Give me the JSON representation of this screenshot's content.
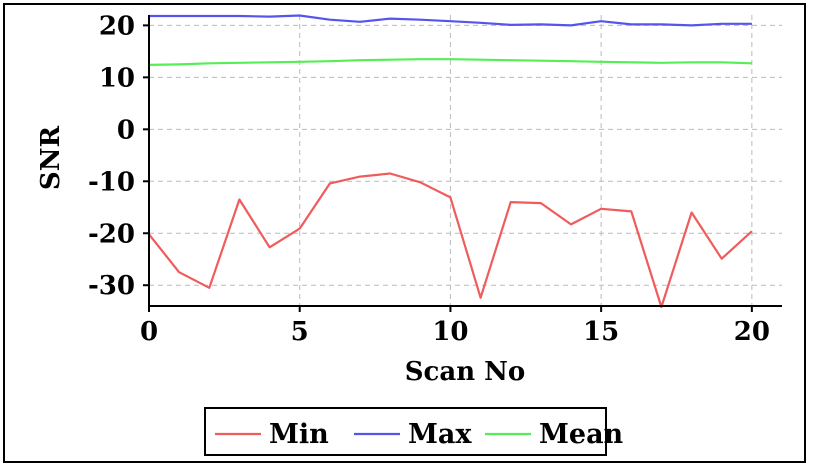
{
  "chart_data": {
    "type": "line",
    "xlabel": "Scan No",
    "ylabel": "SNR",
    "xlim": [
      0,
      21
    ],
    "ylim": [
      -34,
      22
    ],
    "xticks": [
      0,
      5,
      10,
      15,
      20
    ],
    "yticks": [
      20,
      10,
      0,
      -10,
      -20,
      -30
    ],
    "grid": true,
    "legend_position": "bottom-center",
    "x": [
      0,
      1,
      2,
      3,
      4,
      5,
      6,
      7,
      8,
      9,
      10,
      11,
      12,
      13,
      14,
      15,
      16,
      17,
      18,
      19,
      20
    ],
    "series": [
      {
        "name": "Min",
        "color": "#f05b5b",
        "values": [
          -20.2,
          -27.5,
          -30.5,
          -13.5,
          -22.7,
          -19.1,
          -10.4,
          -9.1,
          -8.5,
          -10.2,
          -13.1,
          -32.4,
          -14,
          -14.2,
          -18.3,
          -15.3,
          -15.8,
          -34.2,
          -16,
          -24.9,
          -19.6
        ]
      },
      {
        "name": "Max",
        "color": "#5555ee",
        "values": [
          21.8,
          21.8,
          21.8,
          21.8,
          21.7,
          21.9,
          21.1,
          20.7,
          21.3,
          21.1,
          20.8,
          20.5,
          20.1,
          20.2,
          20,
          20.8,
          20.2,
          20.2,
          20,
          20.3,
          20.3
        ]
      },
      {
        "name": "Mean",
        "color": "#55ee55",
        "values": [
          12.4,
          12.5,
          12.7,
          12.8,
          12.9,
          13,
          13.1,
          13.3,
          13.4,
          13.5,
          13.5,
          13.4,
          13.3,
          13.2,
          13.1,
          13,
          12.9,
          12.8,
          12.9,
          12.9,
          12.7
        ]
      }
    ]
  }
}
